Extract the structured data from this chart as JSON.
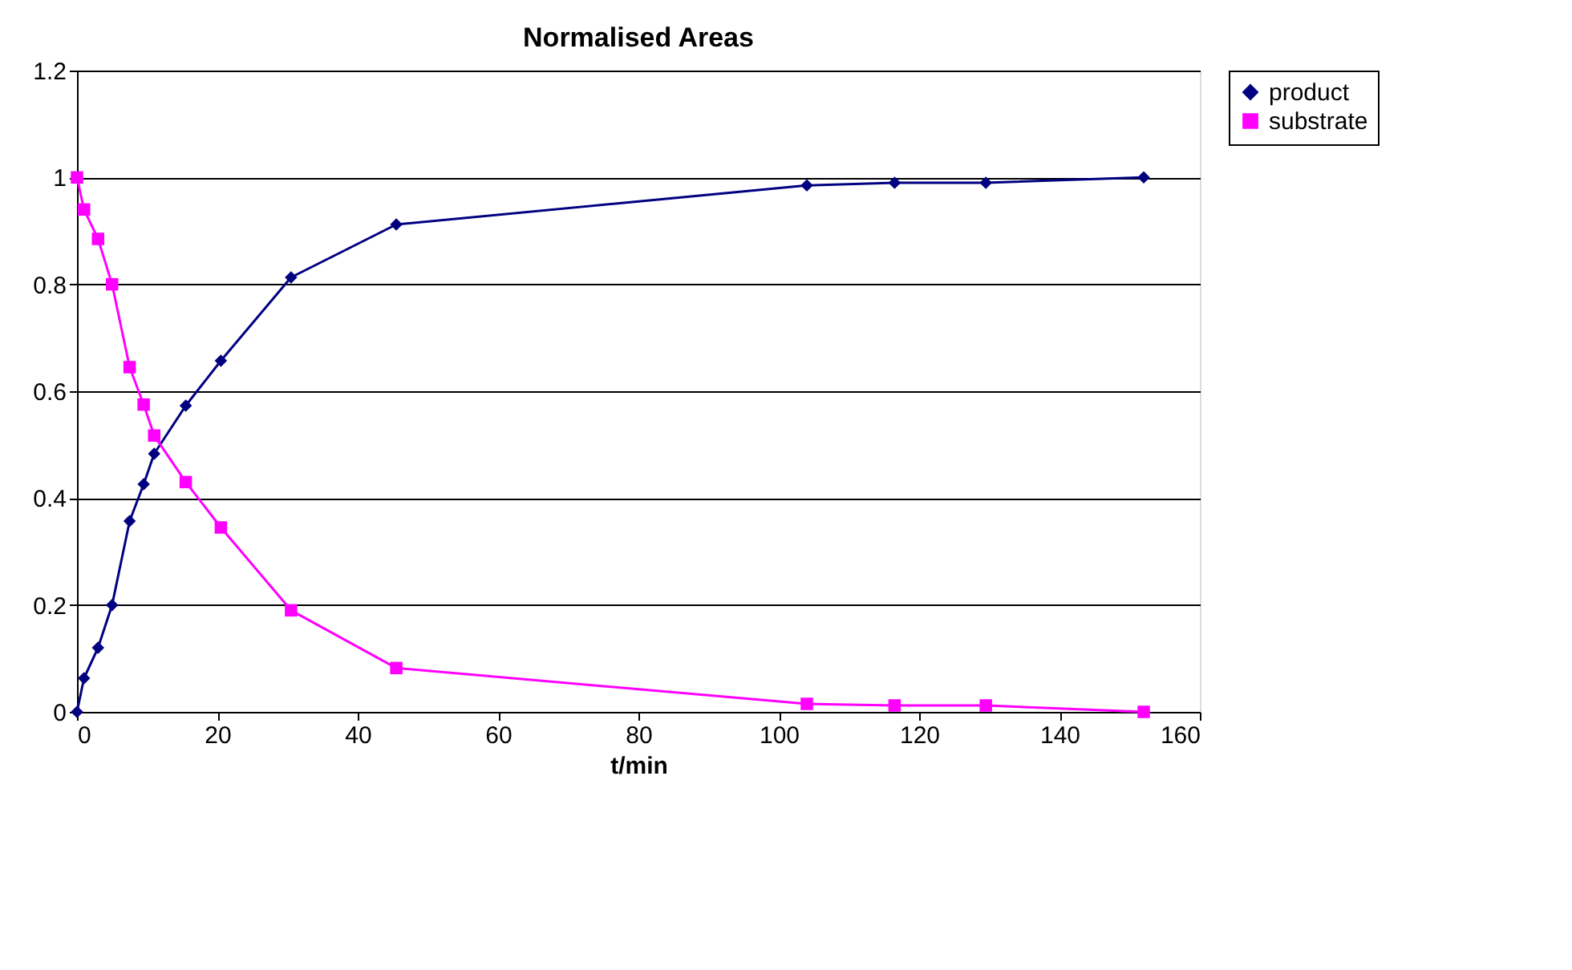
{
  "chart_data": {
    "type": "line",
    "title": "Normalised Areas",
    "xlabel": "t/min",
    "x": [
      0,
      1,
      3,
      5,
      7.5,
      9.5,
      11,
      15.5,
      20.5,
      30.5,
      45.5,
      104,
      116.5,
      129.5,
      152
    ],
    "series": [
      {
        "name": "product",
        "color": "#000080",
        "marker": "diamond",
        "values": [
          0,
          0.063,
          0.12,
          0.2,
          0.357,
          0.426,
          0.483,
          0.573,
          0.657,
          0.813,
          0.912,
          0.985,
          0.99,
          0.99,
          1.0
        ]
      },
      {
        "name": "substrate",
        "color": "#ff00ff",
        "marker": "square",
        "values": [
          1.0,
          0.94,
          0.885,
          0.8,
          0.645,
          0.575,
          0.517,
          0.43,
          0.345,
          0.19,
          0.082,
          0.015,
          0.012,
          0.012,
          0
        ]
      }
    ],
    "xlim": [
      0,
      160
    ],
    "xticks": [
      0,
      20,
      40,
      60,
      80,
      100,
      120,
      140,
      160
    ],
    "ylim": [
      0,
      1.2
    ],
    "yticks": [
      0,
      0.2,
      0.4,
      0.6,
      0.8,
      1,
      1.2
    ],
    "grid": "y",
    "legend": "right",
    "line_style": "solid"
  }
}
